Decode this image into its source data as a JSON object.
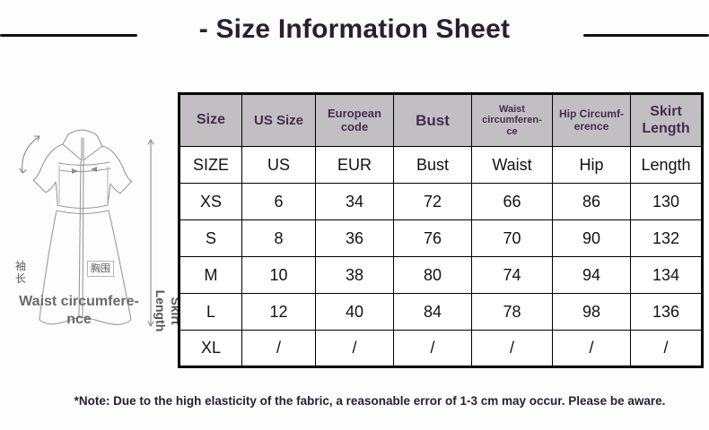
{
  "title": "- Size Information Sheet",
  "note": "*Note: Due to the high elasticity of the fabric, a reasonable error of 1-3 cm may occur. Please be aware.",
  "illustration": {
    "sleeve_label": "袖长",
    "bust_label": "胸围",
    "waist_label": "Waist circumfere-\nnce",
    "skirt_label": "Skirt\nLength"
  },
  "table": {
    "headers": [
      "Size",
      "US Size",
      "European\ncode",
      "Bust",
      "Waist\ncircumferen-\nce",
      "Hip Circumf-\nerence",
      "Skirt\nLength"
    ],
    "rows": [
      [
        "SIZE",
        "US",
        "EUR",
        "Bust",
        "Waist",
        "Hip",
        "Length"
      ],
      [
        "XS",
        "6",
        "34",
        "72",
        "66",
        "86",
        "130"
      ],
      [
        "S",
        "8",
        "36",
        "76",
        "70",
        "90",
        "132"
      ],
      [
        "M",
        "10",
        "38",
        "80",
        "74",
        "94",
        "134"
      ],
      [
        "L",
        "12",
        "40",
        "84",
        "78",
        "98",
        "136"
      ],
      [
        "XL",
        "/",
        "/",
        "/",
        "/",
        "/",
        "/"
      ]
    ]
  },
  "colors": {
    "header_bg": "#c1bfc1",
    "header_text": "#432d4e",
    "title_text": "#29202f",
    "line_art": "#9a9a9a"
  }
}
